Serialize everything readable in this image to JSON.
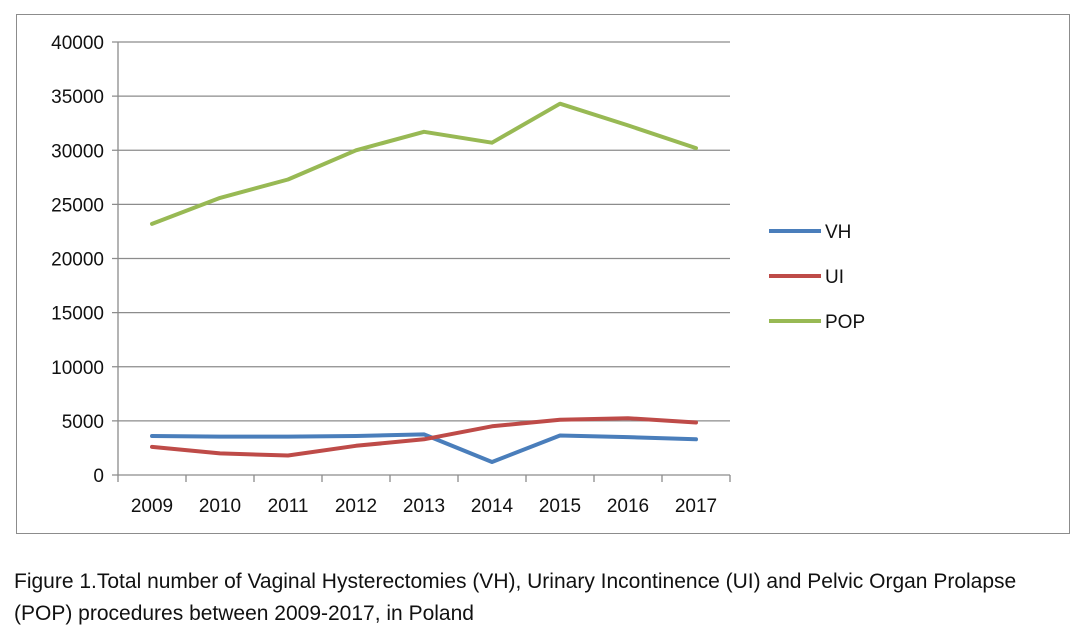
{
  "chart_data": {
    "type": "line",
    "title": "",
    "xlabel": "",
    "ylabel": "",
    "categories": [
      "2009",
      "2010",
      "2011",
      "2012",
      "2013",
      "2014",
      "2015",
      "2016",
      "2017"
    ],
    "ylim": [
      0,
      40000
    ],
    "yticks": [
      0,
      5000,
      10000,
      15000,
      20000,
      25000,
      30000,
      35000,
      40000
    ],
    "grid": "horizontal",
    "legend_position": "right",
    "series": [
      {
        "name": "VH",
        "color": "#4a7ebb",
        "values": [
          3600,
          3550,
          3550,
          3600,
          3750,
          1200,
          3650,
          3500,
          3300
        ]
      },
      {
        "name": "UI",
        "color": "#be4b48",
        "values": [
          2600,
          2000,
          1800,
          2700,
          3300,
          4500,
          5100,
          5250,
          4850
        ]
      },
      {
        "name": "POP",
        "color": "#98b954",
        "values": [
          23200,
          25600,
          27300,
          30000,
          31700,
          30700,
          34300,
          32300,
          30200
        ]
      }
    ]
  },
  "caption": "Figure 1.Total number of Vaginal Hysterectomies (VH), Urinary Incontinence (UI) and  Pelvic Organ Prolapse (POP) procedures between 2009-2017, in Poland"
}
